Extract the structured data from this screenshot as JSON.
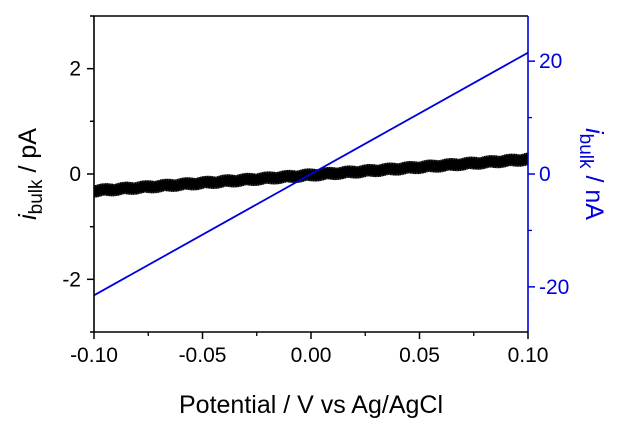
{
  "chart_data": {
    "type": "line",
    "xlabel": "Potential / V vs Ag/AgCl",
    "ylabel_left": {
      "symbol": "i",
      "subscript": "bulk",
      "unit": " / pA"
    },
    "ylabel_right": {
      "symbol": "i",
      "subscript": "bulk",
      "unit": " / nA"
    },
    "xlim": [
      -0.1,
      0.1
    ],
    "ylim_left": [
      -3,
      3
    ],
    "ylim_right": [
      -28,
      28
    ],
    "x_ticks": [
      "-0.10",
      "-0.05",
      "0.00",
      "0.05",
      "0.10"
    ],
    "x_tick_values": [
      -0.1,
      -0.05,
      0.0,
      0.05,
      0.1
    ],
    "y_ticks_left": [
      "-2",
      "0",
      "2"
    ],
    "y_tick_values_left": [
      -2,
      0,
      2
    ],
    "y_ticks_right": [
      "-20",
      "0",
      "20"
    ],
    "y_tick_values_right": [
      -20,
      0,
      20
    ],
    "grid": false,
    "series": [
      {
        "axis": "left",
        "color": "#000000",
        "style": "noisy thick band",
        "x": [
          -0.1,
          0.1
        ],
        "y": [
          -0.32,
          0.28
        ],
        "band_halfwidth": 0.13
      },
      {
        "axis": "right",
        "color": "#0000dd",
        "style": "line",
        "x": [
          -0.1,
          0.1
        ],
        "y": [
          -21.5,
          21.5
        ]
      }
    ],
    "colors": {
      "left_axis": "#000000",
      "right_axis": "#0000dd"
    }
  }
}
